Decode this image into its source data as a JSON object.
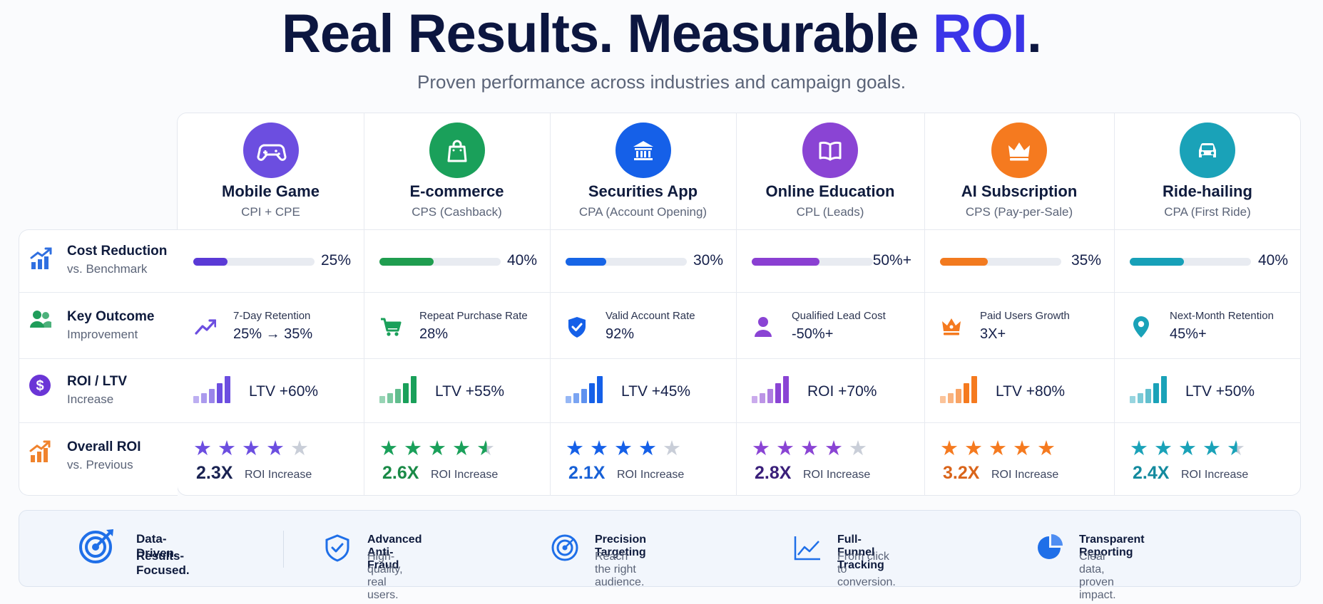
{
  "header": {
    "title_main": "Real Results. Measurable ",
    "title_accent": "ROI",
    "title_end": ".",
    "subtitle": "Proven performance across industries and campaign goals."
  },
  "row_labels": [
    {
      "title": "Cost Reduction",
      "sub": "vs. Benchmark",
      "icon": "bar-chart-up-icon",
      "color": "#2f6fe0"
    },
    {
      "title": "Key Outcome",
      "sub": "Improvement",
      "icon": "users-icon",
      "color": "#1f9d5a"
    },
    {
      "title": "ROI / LTV",
      "sub": "Increase",
      "icon": "dollar-icon",
      "color": "#6a35d6"
    },
    {
      "title": "Overall ROI",
      "sub": "vs. Previous",
      "icon": "growth-chart-icon",
      "color": "#f0832d"
    }
  ],
  "columns": [
    {
      "name": "Mobile Game",
      "metric": "CPI + CPE",
      "icon": "gamepad-icon",
      "color": "#6c4ee0",
      "bar_color": "#5a3ad6",
      "cost_reduction": 0.25,
      "cost_label": "25%",
      "outcome_icon": "trend-up-icon",
      "outcome_label": "7-Day Retention",
      "outcome_value": "25% → 35%",
      "roi_metric": "LTV +60%",
      "rating": 4,
      "roi_value": "2.3X",
      "roi_caption": "ROI Increase",
      "roi_color": "#1a2352"
    },
    {
      "name": "E-commerce",
      "metric": "CPS (Cashback)",
      "icon": "shopping-bag-icon",
      "color": "#1aa05a",
      "bar_color": "#1f9d4f",
      "cost_reduction": 0.4,
      "cost_label": "40%",
      "outcome_icon": "cart-icon",
      "outcome_label": "Repeat Purchase Rate",
      "outcome_value": "28%",
      "roi_metric": "LTV +55%",
      "rating": 4.5,
      "roi_value": "2.6X",
      "roi_caption": "ROI Increase",
      "roi_color": "#1a8a47"
    },
    {
      "name": "Securities App",
      "metric": "CPA (Account Opening)",
      "icon": "bank-icon",
      "color": "#1560e8",
      "bar_color": "#1765e6",
      "cost_reduction": 0.3,
      "cost_label": "30%",
      "outcome_icon": "shield-check-icon",
      "outcome_label": "Valid Account Rate",
      "outcome_value": "92%",
      "roi_metric": "LTV +45%",
      "rating": 4,
      "roi_value": "2.1X",
      "roi_caption": "ROI Increase",
      "roi_color": "#1760d6"
    },
    {
      "name": "Online Education",
      "metric": "CPL (Leads)",
      "icon": "book-icon",
      "color": "#8a44d4",
      "bar_color": "#8a3fd2",
      "cost_reduction": 0.5,
      "cost_label": "50%+",
      "outcome_icon": "person-icon",
      "outcome_label": "Qualified Lead Cost",
      "outcome_value": "-50%+",
      "roi_metric": "ROI +70%",
      "rating": 4,
      "roi_value": "2.8X",
      "roi_caption": "ROI Increase",
      "roi_color": "#3a1f7a"
    },
    {
      "name": "AI Subscription",
      "metric": "CPS (Pay-per-Sale)",
      "icon": "crown-icon",
      "color": "#f57a1f",
      "bar_color": "#f27a1f",
      "cost_reduction": 0.35,
      "cost_label": "35%",
      "outcome_icon": "crown-small-icon",
      "outcome_label": "Paid Users Growth",
      "outcome_value": "3X+",
      "roi_metric": "LTV +80%",
      "rating": 5,
      "roi_value": "3.2X",
      "roi_caption": "ROI Increase",
      "roi_color": "#d9641a"
    },
    {
      "name": "Ride-hailing",
      "metric": "CPA (First Ride)",
      "icon": "car-icon",
      "color": "#1aa2b8",
      "bar_color": "#17a0b8",
      "cost_reduction": 0.4,
      "cost_label": "40%",
      "outcome_icon": "map-pin-icon",
      "outcome_label": "Next-Month Retention",
      "outcome_value": "45%+",
      "roi_metric": "LTV +50%",
      "rating": 4.5,
      "roi_value": "2.4X",
      "roi_caption": "ROI Increase",
      "roi_color": "#138a9e"
    }
  ],
  "footer": {
    "brand_line1": "Data-Driven.",
    "brand_line2": "Results-Focused.",
    "features": [
      {
        "title": "Advanced Anti-Fraud",
        "sub": "High-quality, real users.",
        "icon": "shield-check-icon"
      },
      {
        "title": "Precision Targeting",
        "sub": "Reach the right audience.",
        "icon": "target-icon"
      },
      {
        "title": "Full-Funnel Tracking",
        "sub": "From click to conversion.",
        "icon": "line-chart-icon"
      },
      {
        "title": "Transparent Reporting",
        "sub": "Clear data, proven impact.",
        "icon": "pie-chart-icon"
      }
    ]
  }
}
